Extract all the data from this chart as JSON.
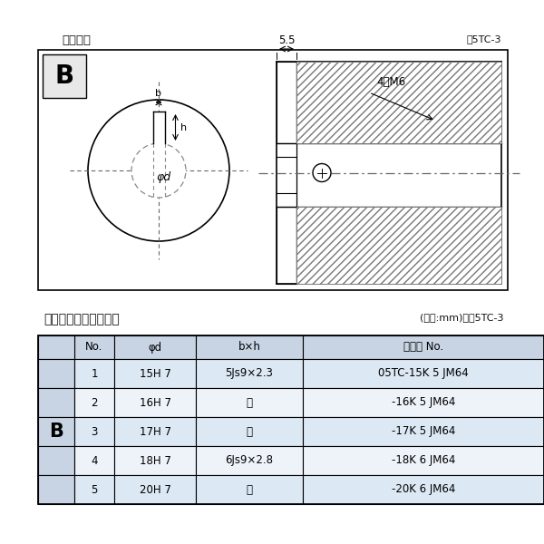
{
  "title_left": "軸穴形状",
  "title_right": "図5TC-3",
  "table_title_left": "軸穴形状コード一覧表",
  "table_title_right": "(単位:mm)　表5TC-3",
  "table_header": [
    "No.",
    "φd",
    "b×h",
    "コード No."
  ],
  "table_rows": [
    [
      "1",
      "15H 7",
      "5Js9×2.3",
      "05TC-15K 5 JM64"
    ],
    [
      "2",
      "16H 7",
      "〃",
      "-16K 5 JM64"
    ],
    [
      "3",
      "17H 7",
      "〃",
      "-17K 5 JM64"
    ],
    [
      "4",
      "18H 7",
      "6Js9×2.8",
      "-18K 6 JM64"
    ],
    [
      "5",
      "20H 7",
      "〃",
      "-20K 6 JM64"
    ]
  ],
  "row_B_label": "B",
  "diagram_label_B": "B",
  "dim_55": "5.5",
  "dim_4M6": "4－M6",
  "dim_b": "b",
  "dim_h": "h",
  "dim_phid": "φd",
  "bg_color": "#ffffff",
  "table_header_bg": "#c8d4e4",
  "table_row_bg_1": "#dce8f4",
  "table_row_bg_2": "#eef3fa",
  "b_cell_bg": "#c8d4e4",
  "border_color": "#000000",
  "text_color": "#111111",
  "gray_light": "#e8e8e8",
  "hatch_color": "#666666",
  "dashed_color": "#888888",
  "centerline_color": "#666666"
}
